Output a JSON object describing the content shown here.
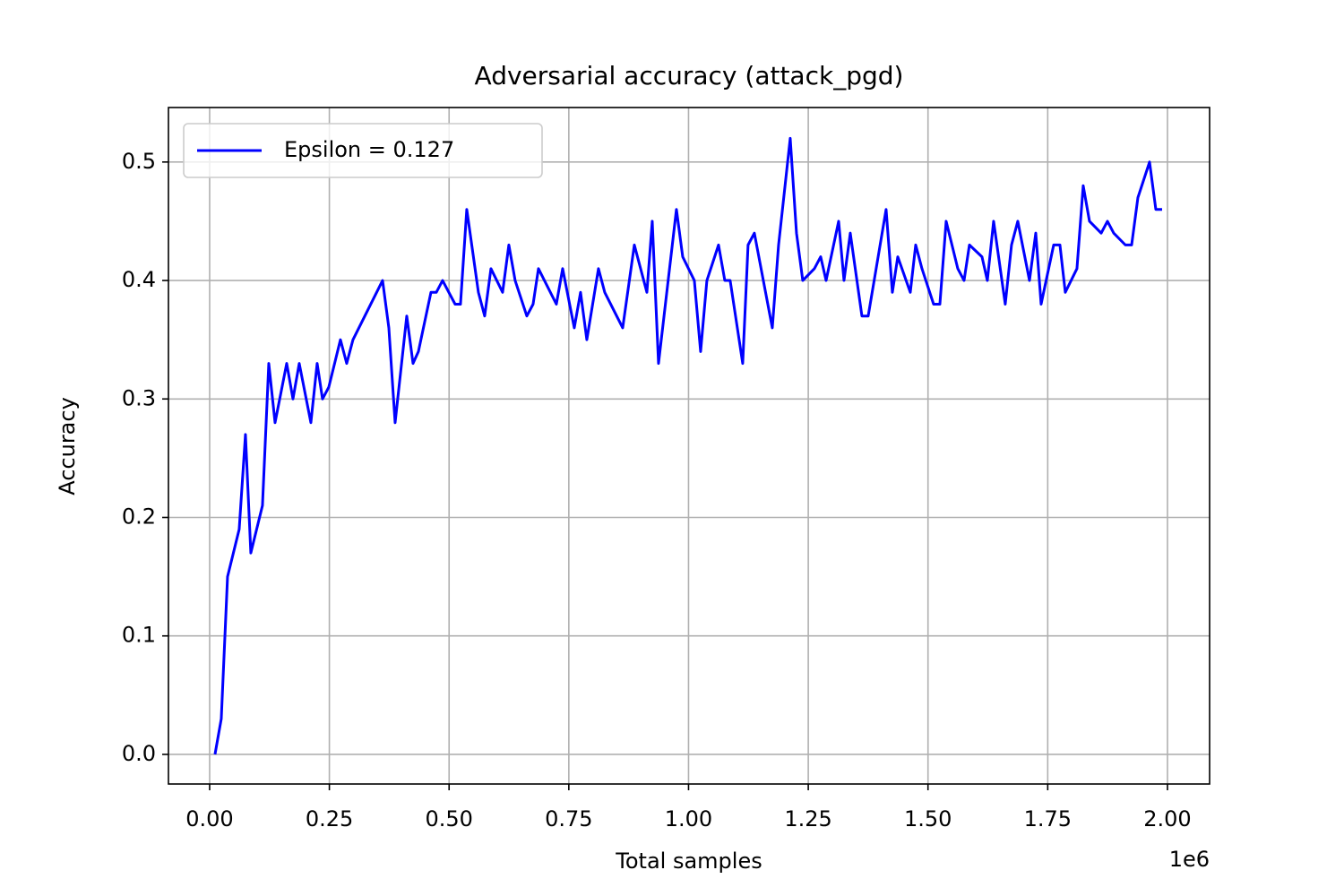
{
  "chart_data": {
    "type": "line",
    "title": "Adversarial accuracy (attack_pgd)",
    "x_label": "Total samples",
    "y_label": "Accuracy",
    "x_offset_label": "1e6",
    "xlim": [
      -86000,
      2088000
    ],
    "ylim": [
      -0.025,
      0.546
    ],
    "xticks": [
      {
        "value": 0,
        "label": "0.00"
      },
      {
        "value": 250000,
        "label": "0.25"
      },
      {
        "value": 500000,
        "label": "0.50"
      },
      {
        "value": 750000,
        "label": "0.75"
      },
      {
        "value": 1000000,
        "label": "1.00"
      },
      {
        "value": 1250000,
        "label": "1.25"
      },
      {
        "value": 1500000,
        "label": "1.50"
      },
      {
        "value": 1750000,
        "label": "1.75"
      },
      {
        "value": 2000000,
        "label": "2.00"
      }
    ],
    "yticks": [
      {
        "value": 0,
        "label": "0.0"
      },
      {
        "value": 0.1,
        "label": "0.1"
      },
      {
        "value": 0.2,
        "label": "0.2"
      },
      {
        "value": 0.3,
        "label": "0.3"
      },
      {
        "value": 0.4,
        "label": "0.4"
      },
      {
        "value": 0.5,
        "label": "0.5"
      }
    ],
    "grid": true,
    "legend_position": "upper-left",
    "x": [
      11200,
      24300,
      37400,
      61700,
      74800,
      86000,
      110300,
      123500,
      136600,
      160900,
      174000,
      187100,
      211400,
      224500,
      235700,
      248800,
      273100,
      286200,
      299300,
      361100,
      374200,
      387300,
      411600,
      424700,
      435900,
      462100,
      473300,
      486400,
      512600,
      523800,
      536900,
      561200,
      574300,
      587400,
      611700,
      624800,
      637900,
      662300,
      675400,
      686600,
      724000,
      737100,
      761400,
      774500,
      787600,
      811900,
      825000,
      862500,
      886800,
      913000,
      924200,
      937300,
      974700,
      987800,
      1012100,
      1025200,
      1038300,
      1062600,
      1075700,
      1086900,
      1113100,
      1124300,
      1137400,
      1174900,
      1188000,
      1212300,
      1225400,
      1238500,
      1262800,
      1275900,
      1287200,
      1313400,
      1324600,
      1337700,
      1362000,
      1375100,
      1412500,
      1425600,
      1436900,
      1463000,
      1474300,
      1487400,
      1511700,
      1524800,
      1537900,
      1562200,
      1575300,
      1586500,
      1612700,
      1623900,
      1637000,
      1661300,
      1674400,
      1687500,
      1711900,
      1725000,
      1736200,
      1762400,
      1775500,
      1786700,
      1811000,
      1824100,
      1837200,
      1861600,
      1874700,
      1887800,
      1912100,
      1925200,
      1938300,
      1962600,
      1975700,
      1988800
    ],
    "series": [
      {
        "name": "Epsilon = 0.127",
        "color": "#0000ff",
        "values": [
          0.0,
          0.03,
          0.15,
          0.19,
          0.27,
          0.17,
          0.21,
          0.33,
          0.28,
          0.33,
          0.3,
          0.33,
          0.28,
          0.33,
          0.3,
          0.31,
          0.35,
          0.33,
          0.35,
          0.4,
          0.36,
          0.28,
          0.37,
          0.33,
          0.34,
          0.39,
          0.39,
          0.4,
          0.38,
          0.38,
          0.46,
          0.39,
          0.37,
          0.41,
          0.39,
          0.43,
          0.4,
          0.37,
          0.38,
          0.41,
          0.38,
          0.41,
          0.36,
          0.39,
          0.35,
          0.41,
          0.39,
          0.36,
          0.43,
          0.39,
          0.45,
          0.33,
          0.46,
          0.42,
          0.4,
          0.34,
          0.4,
          0.43,
          0.4,
          0.4,
          0.33,
          0.43,
          0.44,
          0.36,
          0.43,
          0.52,
          0.44,
          0.4,
          0.41,
          0.42,
          0.4,
          0.45,
          0.4,
          0.44,
          0.37,
          0.37,
          0.46,
          0.39,
          0.42,
          0.39,
          0.43,
          0.41,
          0.38,
          0.38,
          0.45,
          0.41,
          0.4,
          0.43,
          0.42,
          0.4,
          0.45,
          0.38,
          0.43,
          0.45,
          0.4,
          0.44,
          0.38,
          0.43,
          0.43,
          0.39,
          0.41,
          0.48,
          0.45,
          0.44,
          0.45,
          0.44,
          0.43,
          0.43,
          0.47,
          0.5,
          0.46,
          0.46
        ]
      }
    ]
  }
}
